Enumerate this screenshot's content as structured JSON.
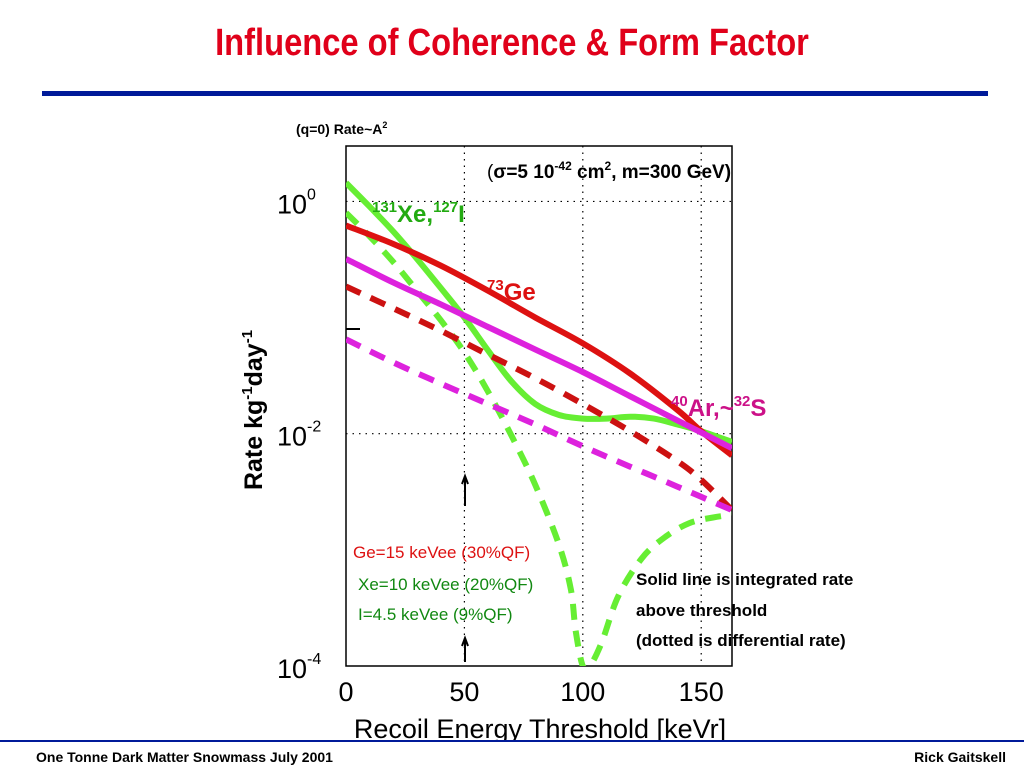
{
  "slide": {
    "title": "Influence of Coherence & Form Factor",
    "title_color": "#e0001a",
    "rule_color": "#001a99",
    "footer_left": "One Tonne Dark Matter Snowmass July 2001",
    "footer_right": "Rick Gaitskell"
  },
  "chart_data": {
    "type": "line",
    "title": "",
    "xlabel": "Recoil Energy Threshold [keVr]",
    "ylabel": "Rate kg-1day-1",
    "y_scale": "log",
    "xlim": [
      0,
      163
    ],
    "ylim": [
      0.0001,
      3
    ],
    "x_ticks": [
      0,
      50,
      100,
      150
    ],
    "y_ticks": [
      {
        "value": 1,
        "base": "10",
        "exp": "0"
      },
      {
        "value": 0.01,
        "base": "10",
        "exp": "-2"
      },
      {
        "value": 0.0001,
        "base": "10",
        "exp": "-4"
      }
    ],
    "grid": true,
    "series": [
      {
        "key": "xe_integrated",
        "style": "solid",
        "color": "#66ee33",
        "x": [
          0,
          10,
          20,
          30,
          40,
          50,
          60,
          70,
          80,
          90,
          100,
          110,
          120,
          130,
          140,
          150,
          163
        ],
        "y": [
          1.45,
          0.9,
          0.55,
          0.32,
          0.18,
          0.1,
          0.052,
          0.028,
          0.018,
          0.0145,
          0.0135,
          0.0135,
          0.014,
          0.0135,
          0.012,
          0.0105,
          0.0085
        ]
      },
      {
        "key": "xe_differential",
        "style": "dashed",
        "color": "#66ee33",
        "x": [
          0,
          10,
          20,
          30,
          40,
          50,
          60,
          70,
          80,
          90,
          95,
          97,
          100,
          103,
          108,
          115,
          125,
          135,
          145,
          155,
          163
        ],
        "y": [
          0.8,
          0.5,
          0.3,
          0.17,
          0.095,
          0.05,
          0.023,
          0.0095,
          0.0036,
          0.0011,
          0.00045,
          0.0002,
          0.0001,
          0.0001,
          0.00016,
          0.0004,
          0.00085,
          0.0013,
          0.0017,
          0.0019,
          0.002
        ]
      },
      {
        "key": "ge_integrated",
        "style": "solid",
        "color": "#dd1111",
        "x": [
          0,
          20,
          40,
          60,
          80,
          100,
          120,
          140,
          150,
          163
        ],
        "y": [
          0.62,
          0.43,
          0.28,
          0.17,
          0.1,
          0.06,
          0.033,
          0.016,
          0.0105,
          0.0065
        ]
      },
      {
        "key": "ge_differential",
        "style": "dashed",
        "color": "#cc1111",
        "x": [
          0,
          20,
          40,
          60,
          80,
          100,
          120,
          140,
          150,
          163
        ],
        "y": [
          0.185,
          0.12,
          0.077,
          0.048,
          0.03,
          0.018,
          0.0105,
          0.0058,
          0.004,
          0.0022
        ]
      },
      {
        "key": "ar_integrated",
        "style": "solid",
        "color": "#dd22dd",
        "x": [
          0,
          20,
          40,
          60,
          80,
          100,
          120,
          140,
          163
        ],
        "y": [
          0.32,
          0.2,
          0.13,
          0.083,
          0.053,
          0.034,
          0.021,
          0.013,
          0.0075
        ]
      },
      {
        "key": "ar_differential",
        "style": "dashed",
        "color": "#dd22dd",
        "x": [
          0,
          20,
          40,
          60,
          80,
          100,
          120,
          140,
          163
        ],
        "y": [
          0.065,
          0.041,
          0.027,
          0.018,
          0.012,
          0.0078,
          0.0052,
          0.0035,
          0.0022
        ]
      }
    ],
    "annotations": {
      "top_left": {
        "pre": "(q=0) Rate~A",
        "sup": "2"
      },
      "cross_section": {
        "open": "(",
        "sigma": "σ",
        "mid": "=5 10",
        "sup1": "-42",
        "mid2": " cm",
        "sup2": "2",
        "rest": ", m=300 GeV)"
      },
      "xe_label": {
        "sup1": "131",
        "t1": "Xe,",
        "sup2": "127",
        "t2": "I",
        "color": "#22aa11"
      },
      "ge_label": {
        "sup": "73",
        "t": "Ge",
        "color": "#dd1111"
      },
      "ar_label": {
        "sup1": "40",
        "t1": "Ar,~",
        "sup2": "32",
        "t2": "S",
        "color": "#cc1188"
      },
      "ylabel_parts": {
        "t1": "Rate kg",
        "sup1": "-1",
        "t2": "day",
        "sup2": "-1"
      },
      "thresholds": [
        {
          "text": "Ge=15 keVee (30%QF)",
          "color": "#dd1111"
        },
        {
          "text": "Xe=10 keVee (20%QF)",
          "color": "#118811"
        },
        {
          "text": "I=4.5 keVee (9%QF)",
          "color": "#118811"
        }
      ],
      "note_lines": [
        "Solid line is integrated rate",
        "above threshold",
        "(dotted is differential rate)"
      ]
    }
  }
}
